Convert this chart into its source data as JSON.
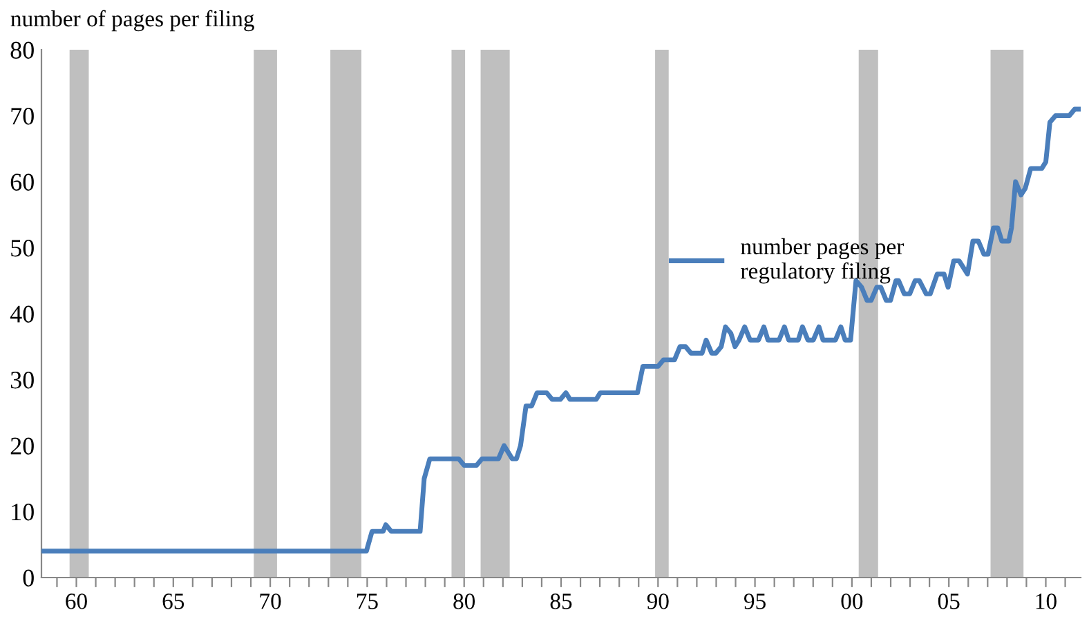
{
  "chart_data": {
    "type": "line",
    "ylabel": "number of pages per filing",
    "series": [
      {
        "name": "number pages per\nregulatory filing",
        "color": "#4a7ebb",
        "x": [
          1958.25,
          1974.96,
          1975.25,
          1975.82,
          1975.96,
          1976.24,
          1977.73,
          1977.94,
          1978.23,
          1979.72,
          1980.0,
          1980.64,
          1980.92,
          1981.77,
          1982.06,
          1982.48,
          1982.7,
          1982.91,
          1983.19,
          1983.48,
          1983.76,
          1984.26,
          1984.54,
          1984.96,
          1985.25,
          1985.46,
          1986.81,
          1987.02,
          1988.94,
          1989.22,
          1990.0,
          1990.28,
          1990.85,
          1991.13,
          1991.42,
          1991.7,
          1992.27,
          1992.48,
          1992.77,
          1992.98,
          1993.26,
          1993.48,
          1993.76,
          1993.97,
          1994.18,
          1994.47,
          1994.75,
          1995.18,
          1995.46,
          1995.67,
          1996.24,
          1996.52,
          1996.74,
          1997.23,
          1997.45,
          1997.73,
          1998.01,
          1998.3,
          1998.51,
          1999.15,
          1999.43,
          1999.65,
          1999.93,
          2000.21,
          2000.5,
          2000.78,
          2000.99,
          2001.28,
          2001.49,
          2001.77,
          2001.99,
          2002.27,
          2002.41,
          2002.7,
          2002.98,
          2003.26,
          2003.48,
          2003.83,
          2004.04,
          2004.4,
          2004.75,
          2004.96,
          2005.25,
          2005.53,
          2005.96,
          2006.24,
          2006.52,
          2006.81,
          2007.02,
          2007.3,
          2007.52,
          2007.73,
          2008.09,
          2008.23,
          2008.44,
          2008.72,
          2008.94,
          2009.22,
          2009.79,
          2010.0,
          2010.21,
          2010.5,
          2011.21,
          2011.49,
          2011.77
        ],
        "values": [
          4,
          4,
          7,
          7,
          8,
          7,
          7,
          15,
          18,
          18,
          17,
          17,
          18,
          18,
          20,
          18,
          18,
          20,
          26,
          26,
          28,
          28,
          27,
          27,
          28,
          27,
          27,
          28,
          28,
          32,
          32,
          33,
          33,
          35,
          35,
          34,
          34,
          36,
          34,
          34,
          35,
          38,
          37,
          35,
          36,
          38,
          36,
          36,
          38,
          36,
          36,
          38,
          36,
          36,
          38,
          36,
          36,
          38,
          36,
          36,
          38,
          36,
          36,
          45,
          44,
          42,
          42,
          44,
          44,
          42,
          42,
          45,
          45,
          43,
          43,
          45,
          45,
          43,
          43,
          46,
          46,
          44,
          48,
          48,
          46,
          51,
          51,
          49,
          49,
          53,
          53,
          51,
          51,
          53,
          60,
          58,
          59,
          62,
          62,
          63,
          69,
          70,
          70,
          71,
          71
        ]
      }
    ],
    "bands": [
      {
        "axis": "x",
        "from": 1959.65,
        "to": 1960.64,
        "color": "#bfbfbf"
      },
      {
        "axis": "x",
        "from": 1969.15,
        "to": 1970.35,
        "color": "#bfbfbf"
      },
      {
        "axis": "x",
        "from": 1973.1,
        "to": 1974.7,
        "color": "#bfbfbf"
      },
      {
        "axis": "x",
        "from": 1979.35,
        "to": 1980.05,
        "color": "#bfbfbf"
      },
      {
        "axis": "x",
        "from": 1980.85,
        "to": 1982.35,
        "color": "#bfbfbf"
      },
      {
        "axis": "x",
        "from": 1989.85,
        "to": 1990.55,
        "color": "#bfbfbf"
      },
      {
        "axis": "x",
        "from": 2000.35,
        "to": 2001.35,
        "color": "#bfbfbf"
      },
      {
        "axis": "x",
        "from": 2007.15,
        "to": 2008.85,
        "color": "#bfbfbf"
      }
    ],
    "xlim": [
      1958.2,
      2011.8
    ],
    "ylim": [
      0,
      80
    ],
    "yticks": [
      0,
      10,
      20,
      30,
      40,
      50,
      60,
      70,
      80
    ],
    "xticks": [
      {
        "value": 1959,
        "label": null
      },
      {
        "value": 1960,
        "label": "60"
      },
      {
        "value": 1961,
        "label": null
      },
      {
        "value": 1962,
        "label": null
      },
      {
        "value": 1963,
        "label": null
      },
      {
        "value": 1964,
        "label": null
      },
      {
        "value": 1965,
        "label": "65"
      },
      {
        "value": 1966,
        "label": null
      },
      {
        "value": 1967,
        "label": null
      },
      {
        "value": 1968,
        "label": null
      },
      {
        "value": 1969,
        "label": null
      },
      {
        "value": 1970,
        "label": "70"
      },
      {
        "value": 1971,
        "label": null
      },
      {
        "value": 1972,
        "label": null
      },
      {
        "value": 1973,
        "label": null
      },
      {
        "value": 1974,
        "label": null
      },
      {
        "value": 1975,
        "label": "75"
      },
      {
        "value": 1976,
        "label": null
      },
      {
        "value": 1977,
        "label": null
      },
      {
        "value": 1978,
        "label": null
      },
      {
        "value": 1979,
        "label": null
      },
      {
        "value": 1980,
        "label": "80"
      },
      {
        "value": 1981,
        "label": null
      },
      {
        "value": 1982,
        "label": null
      },
      {
        "value": 1983,
        "label": null
      },
      {
        "value": 1984,
        "label": null
      },
      {
        "value": 1985,
        "label": "85"
      },
      {
        "value": 1986,
        "label": null
      },
      {
        "value": 1987,
        "label": null
      },
      {
        "value": 1988,
        "label": null
      },
      {
        "value": 1989,
        "label": null
      },
      {
        "value": 1990,
        "label": "90"
      },
      {
        "value": 1991,
        "label": null
      },
      {
        "value": 1992,
        "label": null
      },
      {
        "value": 1993,
        "label": null
      },
      {
        "value": 1994,
        "label": null
      },
      {
        "value": 1995,
        "label": "95"
      },
      {
        "value": 1996,
        "label": null
      },
      {
        "value": 1997,
        "label": null
      },
      {
        "value": 1998,
        "label": null
      },
      {
        "value": 1999,
        "label": null
      },
      {
        "value": 2000,
        "label": "00"
      },
      {
        "value": 2001,
        "label": null
      },
      {
        "value": 2002,
        "label": null
      },
      {
        "value": 2003,
        "label": null
      },
      {
        "value": 2004,
        "label": null
      },
      {
        "value": 2005,
        "label": "05"
      },
      {
        "value": 2006,
        "label": null
      },
      {
        "value": 2007,
        "label": null
      },
      {
        "value": 2008,
        "label": null
      },
      {
        "value": 2009,
        "label": null
      },
      {
        "value": 2010,
        "label": "10"
      },
      {
        "value": 2011,
        "label": null
      }
    ],
    "grid": false,
    "legend": "center right",
    "marker": "none",
    "line_style": "solid"
  }
}
